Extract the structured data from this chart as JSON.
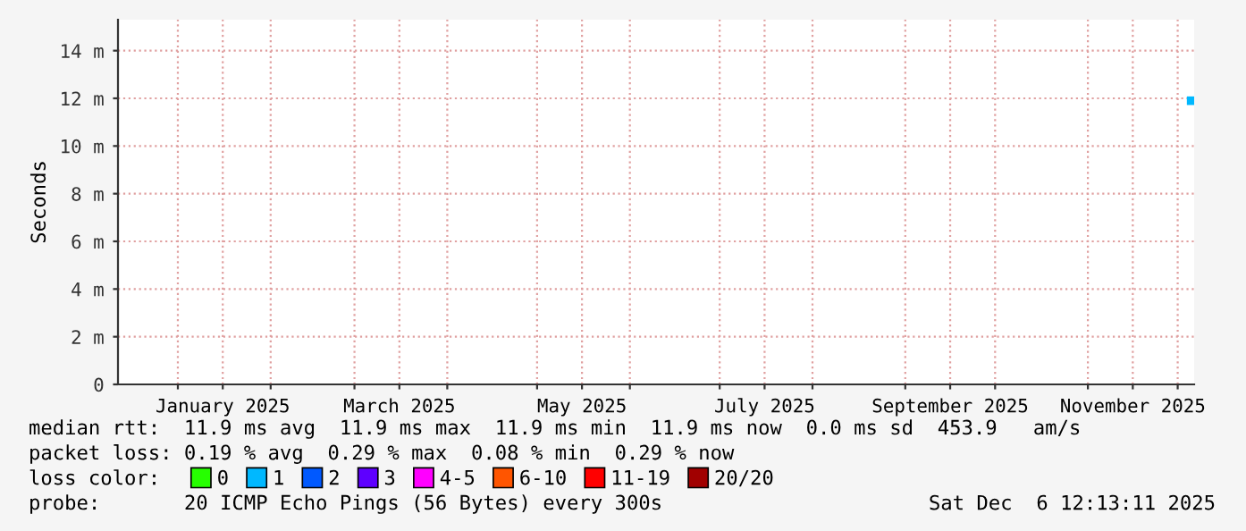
{
  "chart_data": {
    "type": "scatter",
    "ylabel": "Seconds",
    "x": [
      "2025-12-05T12:00"
    ],
    "series": [
      {
        "name": "0",
        "color": "#26ff00",
        "values": [
          null
        ]
      },
      {
        "name": "1",
        "color": "#00b8ff",
        "values": [
          11.9
        ]
      },
      {
        "name": "2",
        "color": "#0059ff",
        "values": [
          null
        ]
      },
      {
        "name": "3",
        "color": "#5e00ff",
        "values": [
          null
        ]
      },
      {
        "name": "4-5",
        "color": "#ff00ff",
        "values": [
          null
        ]
      },
      {
        "name": "6-10",
        "color": "#ff5500",
        "values": [
          null
        ]
      },
      {
        "name": "11-19",
        "color": "#ff0000",
        "values": [
          null
        ]
      },
      {
        "name": "20/20",
        "color": "#a10000",
        "values": [
          null
        ]
      }
    ],
    "legend_title": "loss color:",
    "legend": "bottom",
    "marker": "square",
    "grid": true,
    "xlim": [
      "2024-12-12",
      "2025-12-06T12:00"
    ],
    "xticks": [
      {
        "value": "2025-01-01",
        "label": null
      },
      {
        "value": "2025-01-16",
        "label": "January 2025"
      },
      {
        "value": "2025-02-01",
        "label": null
      },
      {
        "value": "2025-03-01",
        "label": null
      },
      {
        "value": "2025-03-16",
        "label": "March 2025"
      },
      {
        "value": "2025-04-01",
        "label": null
      },
      {
        "value": "2025-05-01",
        "label": null
      },
      {
        "value": "2025-05-16",
        "label": "May 2025"
      },
      {
        "value": "2025-06-01",
        "label": null
      },
      {
        "value": "2025-07-01",
        "label": null
      },
      {
        "value": "2025-07-16",
        "label": "July 2025"
      },
      {
        "value": "2025-08-01",
        "label": null
      },
      {
        "value": "2025-09-01",
        "label": null
      },
      {
        "value": "2025-09-16",
        "label": "September 2025"
      },
      {
        "value": "2025-10-01",
        "label": null
      },
      {
        "value": "2025-11-01",
        "label": null
      },
      {
        "value": "2025-11-16",
        "label": "November 2025"
      },
      {
        "value": "2025-12-01",
        "label": null
      }
    ],
    "ylim": [
      0,
      15.3
    ],
    "yticks": [
      0,
      {
        "value": 2,
        "label": "2 m"
      },
      {
        "value": 4,
        "label": "4 m"
      },
      {
        "value": 6,
        "label": "6 m"
      },
      {
        "value": 8,
        "label": "8 m"
      },
      {
        "value": 10,
        "label": "10 m"
      },
      {
        "value": 12,
        "label": "12 m"
      },
      {
        "value": 14,
        "label": "14 m"
      }
    ],
    "annotations": [
      "median rtt:  11.9 ms avg  11.9 ms max  11.9 ms min  11.9 ms now  0.0 ms sd  453.9   am/s",
      "packet loss: 0.19 % avg  0.29 % max  0.08 % min  0.29 % now",
      "probe:       20 ICMP Echo Pings (56 Bytes) every 300s",
      "Sat Dec  6 12:13:11 2025"
    ]
  }
}
